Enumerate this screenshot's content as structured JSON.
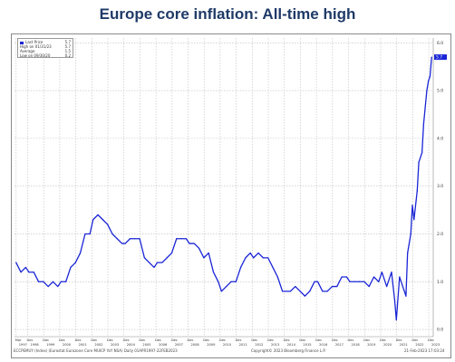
{
  "title": "Europe core inflation: All-time high",
  "legend": {
    "rows": [
      {
        "label": "Last Price",
        "value": "5.7"
      },
      {
        "label": "High on 01/31/23",
        "value": "5.7"
      },
      {
        "label": "Average",
        "value": "1.5"
      },
      {
        "label": "Low on 09/30/20",
        "value": "0.2"
      }
    ]
  },
  "footer": {
    "left": "ECCPEMUY (Index) (Eurostat Eurozone Core MUICP YoY NSA) Daily 01APR1997-22FEB2023",
    "mid": "Copyright© 2023 Bloomberg Finance L.P.",
    "right": "21-Feb-2023 17:03:24"
  },
  "last_value_tag": "5.7",
  "colors": {
    "line": "#1a25d6",
    "grid": "#bfbfbf",
    "title": "#1f3a68"
  },
  "chart_data": {
    "type": "line",
    "title": "Europe core inflation: All-time high",
    "xlabel": "",
    "ylabel": "",
    "x_ticks": [
      {
        "top": "Mar",
        "bottom": "1997",
        "year": 1997.2
      },
      {
        "top": "Dec",
        "bottom": "1998",
        "year": 1997.92
      },
      {
        "top": "Dec",
        "bottom": "1999",
        "year": 1998.92
      },
      {
        "top": "Dec",
        "bottom": "2000",
        "year": 1999.92
      },
      {
        "top": "Dec",
        "bottom": "2001",
        "year": 2000.92
      },
      {
        "top": "Dec",
        "bottom": "2002",
        "year": 2001.92
      },
      {
        "top": "Dec",
        "bottom": "2003",
        "year": 2002.92
      },
      {
        "top": "Dec",
        "bottom": "2004",
        "year": 2003.92
      },
      {
        "top": "Dec",
        "bottom": "2005",
        "year": 2004.92
      },
      {
        "top": "Dec",
        "bottom": "2006",
        "year": 2005.92
      },
      {
        "top": "Dec",
        "bottom": "2007",
        "year": 2006.92
      },
      {
        "top": "Dec",
        "bottom": "2008",
        "year": 2007.92
      },
      {
        "top": "Dec",
        "bottom": "2009",
        "year": 2008.92
      },
      {
        "top": "Dec",
        "bottom": "2010",
        "year": 2009.92
      },
      {
        "top": "Dec",
        "bottom": "2011",
        "year": 2010.92
      },
      {
        "top": "Dec",
        "bottom": "2012",
        "year": 2011.92
      },
      {
        "top": "Dec",
        "bottom": "2013",
        "year": 2012.92
      },
      {
        "top": "Dec",
        "bottom": "2014",
        "year": 2013.92
      },
      {
        "top": "Dec",
        "bottom": "2015",
        "year": 2014.92
      },
      {
        "top": "Dec",
        "bottom": "2016",
        "year": 2015.92
      },
      {
        "top": "Dec",
        "bottom": "2017",
        "year": 2016.92
      },
      {
        "top": "Dec",
        "bottom": "2018",
        "year": 2017.92
      },
      {
        "top": "Dec",
        "bottom": "2019",
        "year": 2018.92
      },
      {
        "top": "Dec",
        "bottom": "2020",
        "year": 2019.92
      },
      {
        "top": "Dec",
        "bottom": "2021",
        "year": 2020.92
      },
      {
        "top": "Dec",
        "bottom": "2022",
        "year": 2021.92
      },
      {
        "top": "Dec",
        "bottom": "2023",
        "year": 2022.92
      }
    ],
    "y_ticks": [
      "0.0",
      "1.0",
      "2.0",
      "3.0",
      "4.0",
      "5.0",
      "6.0"
    ],
    "ylim": [
      -0.15,
      6.1
    ],
    "xlim": [
      1997.1,
      2023.2
    ],
    "grid": true,
    "legend_position": "top-left",
    "series": [
      {
        "values": [
          [
            1997.2,
            1.4
          ],
          [
            1997.5,
            1.2
          ],
          [
            1997.8,
            1.3
          ],
          [
            1998.0,
            1.2
          ],
          [
            1998.3,
            1.2
          ],
          [
            1998.6,
            1.0
          ],
          [
            1998.9,
            1.0
          ],
          [
            1999.2,
            0.9
          ],
          [
            1999.5,
            1.0
          ],
          [
            1999.8,
            0.9
          ],
          [
            2000.0,
            1.0
          ],
          [
            2000.3,
            1.0
          ],
          [
            2000.6,
            1.3
          ],
          [
            2000.9,
            1.4
          ],
          [
            2001.2,
            1.6
          ],
          [
            2001.5,
            2.0
          ],
          [
            2001.8,
            2.0
          ],
          [
            2002.0,
            2.3
          ],
          [
            2002.3,
            2.4
          ],
          [
            2002.6,
            2.3
          ],
          [
            2002.9,
            2.2
          ],
          [
            2003.2,
            2.0
          ],
          [
            2003.5,
            1.9
          ],
          [
            2003.8,
            1.8
          ],
          [
            2004.0,
            1.8
          ],
          [
            2004.3,
            1.9
          ],
          [
            2004.6,
            1.9
          ],
          [
            2004.9,
            1.9
          ],
          [
            2005.2,
            1.5
          ],
          [
            2005.5,
            1.4
          ],
          [
            2005.8,
            1.3
          ],
          [
            2006.0,
            1.4
          ],
          [
            2006.3,
            1.4
          ],
          [
            2006.6,
            1.5
          ],
          [
            2006.9,
            1.6
          ],
          [
            2007.2,
            1.9
          ],
          [
            2007.5,
            1.9
          ],
          [
            2007.8,
            1.9
          ],
          [
            2008.0,
            1.8
          ],
          [
            2008.3,
            1.8
          ],
          [
            2008.6,
            1.7
          ],
          [
            2008.9,
            1.5
          ],
          [
            2009.2,
            1.6
          ],
          [
            2009.5,
            1.2
          ],
          [
            2009.8,
            1.0
          ],
          [
            2010.0,
            0.8
          ],
          [
            2010.3,
            0.9
          ],
          [
            2010.6,
            1.0
          ],
          [
            2010.9,
            1.0
          ],
          [
            2011.2,
            1.3
          ],
          [
            2011.5,
            1.5
          ],
          [
            2011.8,
            1.6
          ],
          [
            2012.0,
            1.5
          ],
          [
            2012.3,
            1.6
          ],
          [
            2012.6,
            1.5
          ],
          [
            2012.9,
            1.5
          ],
          [
            2013.2,
            1.3
          ],
          [
            2013.5,
            1.1
          ],
          [
            2013.8,
            0.8
          ],
          [
            2014.0,
            0.8
          ],
          [
            2014.3,
            0.8
          ],
          [
            2014.6,
            0.9
          ],
          [
            2014.9,
            0.8
          ],
          [
            2015.2,
            0.7
          ],
          [
            2015.5,
            0.8
          ],
          [
            2015.8,
            1.0
          ],
          [
            2016.0,
            1.0
          ],
          [
            2016.3,
            0.8
          ],
          [
            2016.6,
            0.8
          ],
          [
            2016.9,
            0.9
          ],
          [
            2017.2,
            0.9
          ],
          [
            2017.5,
            1.1
          ],
          [
            2017.8,
            1.1
          ],
          [
            2018.0,
            1.0
          ],
          [
            2018.3,
            1.0
          ],
          [
            2018.6,
            1.0
          ],
          [
            2018.9,
            1.0
          ],
          [
            2019.2,
            0.9
          ],
          [
            2019.5,
            1.1
          ],
          [
            2019.8,
            1.0
          ],
          [
            2020.0,
            1.2
          ],
          [
            2020.3,
            0.9
          ],
          [
            2020.6,
            1.2
          ],
          [
            2020.8,
            0.6
          ],
          [
            2020.9,
            0.2
          ],
          [
            2021.1,
            1.1
          ],
          [
            2021.3,
            0.9
          ],
          [
            2021.5,
            0.7
          ],
          [
            2021.6,
            1.6
          ],
          [
            2021.8,
            2.0
          ],
          [
            2021.9,
            2.6
          ],
          [
            2022.0,
            2.3
          ],
          [
            2022.2,
            2.9
          ],
          [
            2022.3,
            3.5
          ],
          [
            2022.5,
            3.7
          ],
          [
            2022.6,
            4.3
          ],
          [
            2022.8,
            5.0
          ],
          [
            2022.9,
            5.2
          ],
          [
            2023.0,
            5.3
          ],
          [
            2023.1,
            5.7
          ]
        ]
      }
    ]
  }
}
